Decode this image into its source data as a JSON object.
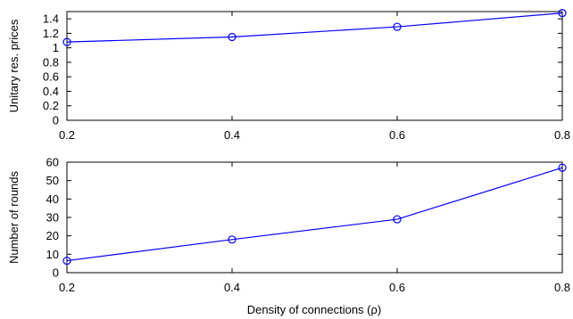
{
  "chart_data": [
    {
      "type": "line",
      "title": "",
      "xlabel": "",
      "ylabel": "Unitary res. prices",
      "x": [
        0.2,
        0.4,
        0.6,
        0.8
      ],
      "xlim": [
        0.2,
        0.8
      ],
      "ylim": [
        0,
        1.5
      ],
      "xticks": [
        "0.2",
        "0.4",
        "0.6",
        "0.8"
      ],
      "yticks": [
        "0",
        "0.2",
        "0.4",
        "0.6",
        "0.8",
        "1",
        "1.2",
        "1.4"
      ],
      "grid": false,
      "series": [
        {
          "values": [
            1.08,
            1.15,
            1.29,
            1.48
          ],
          "color": "#0000ff",
          "marker": "circle"
        }
      ]
    },
    {
      "type": "line",
      "title": "",
      "xlabel": "Density of connections (ρ)",
      "ylabel": "Number of rounds",
      "x": [
        0.2,
        0.4,
        0.6,
        0.8
      ],
      "xlim": [
        0.2,
        0.8
      ],
      "ylim": [
        0,
        60
      ],
      "xticks": [
        "0.2",
        "0.4",
        "0.6",
        "0.8"
      ],
      "yticks": [
        "0",
        "10",
        "20",
        "30",
        "40",
        "50",
        "60"
      ],
      "grid": false,
      "series": [
        {
          "values": [
            6.5,
            18,
            29,
            57
          ],
          "color": "#0000ff",
          "marker": "circle"
        }
      ]
    }
  ]
}
